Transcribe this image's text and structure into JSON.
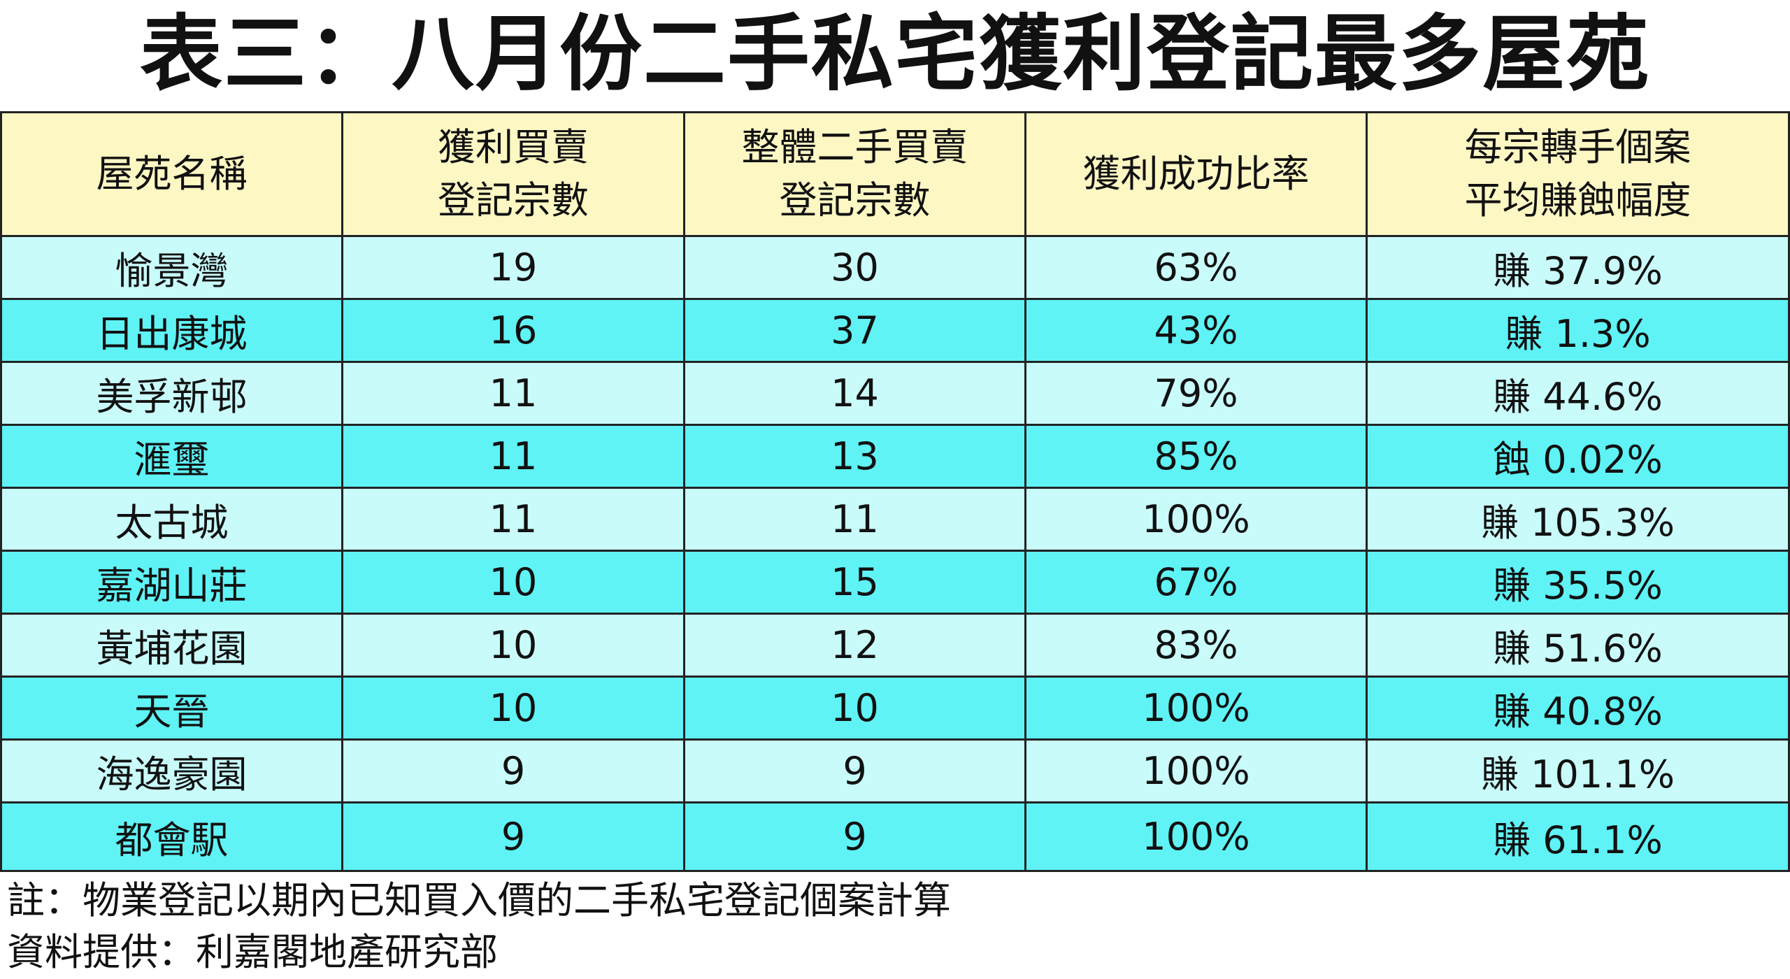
{
  "title": "表三：八月份二手私宅獲利登記最多屋苑",
  "table": {
    "header": [
      [
        "屋苑名稱"
      ],
      [
        "獲利買賣",
        "登記宗數"
      ],
      [
        "整體二手買賣",
        "登記宗數"
      ],
      [
        "獲利成功比率"
      ],
      [
        "每宗轉手個案",
        "平均賺蝕幅度"
      ]
    ],
    "rows": [
      [
        "愉景灣",
        19,
        30,
        "63%",
        "賺 37.9%"
      ],
      [
        "日出康城",
        16,
        37,
        "43%",
        "賺 1.3%"
      ],
      [
        "美孚新邨",
        11,
        14,
        "79%",
        "賺 44.6%"
      ],
      [
        "滙璽",
        11,
        13,
        "85%",
        "蝕 0.02%"
      ],
      [
        "太古城",
        11,
        11,
        "100%",
        "賺 105.3%"
      ],
      [
        "嘉湖山莊",
        10,
        15,
        "67%",
        "賺 35.5%"
      ],
      [
        "黃埔花園",
        10,
        12,
        "83%",
        "賺 51.6%"
      ],
      [
        "天晉",
        10,
        10,
        "100%",
        "賺 40.8%"
      ],
      [
        "海逸豪園",
        9,
        9,
        "100%",
        "賺 101.1%"
      ],
      [
        "都會駅",
        9,
        9,
        "100%",
        "賺 61.1%"
      ]
    ]
  },
  "notes": [
    "註：物業登記以期內已知買入價的二手私宅登記個案計算",
    "資料提供：利嘉閣地產研究部"
  ]
}
